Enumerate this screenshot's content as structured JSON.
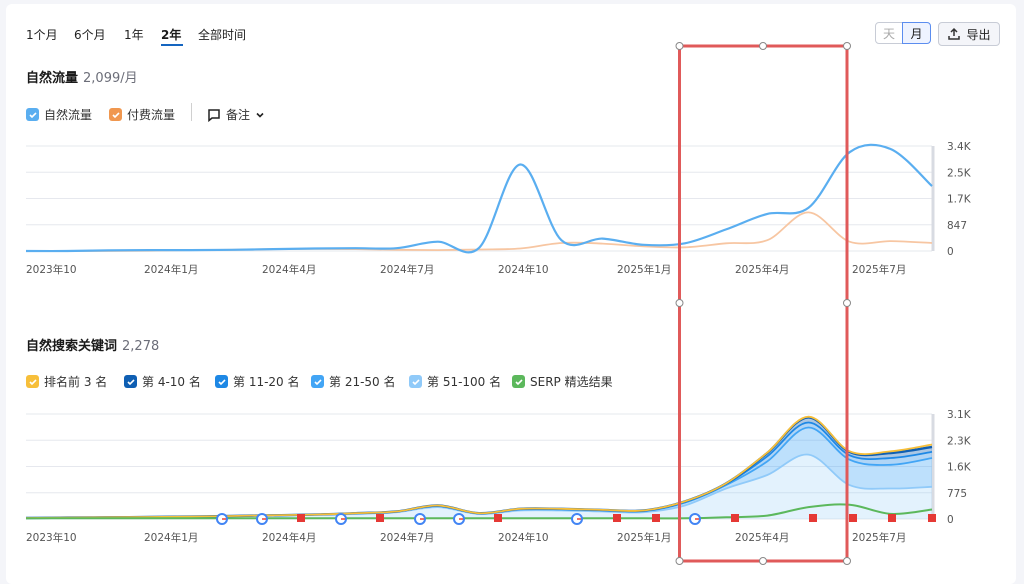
{
  "periods": [
    "1个月",
    "6个月",
    "1年",
    "2年",
    "全部时间"
  ],
  "active_period": "2年",
  "granularity": {
    "day": "天",
    "month": "月"
  },
  "export_label": "导出",
  "organic_traffic": {
    "title": "自然流量",
    "value": "2,099/月"
  },
  "traffic_legend": {
    "organic": "自然流量",
    "paid": "付费流量",
    "notes": "备注"
  },
  "keywords": {
    "title": "自然搜索关键词",
    "value": "2,278"
  },
  "kw_legend": [
    "排名前 3 名",
    "第 4-10 名",
    "第 11-20 名",
    "第 21-50 名",
    "第 51-100 名",
    "SERP 精选结果"
  ],
  "colors": {
    "organic": "#5aaef0",
    "paid": "#f7c6a2",
    "top3": "#f7bf3a",
    "pos4_10": "#0f5fb3",
    "pos11_20": "#1e88e5",
    "pos21_50": "#42a5f5",
    "pos51_100": "#90caf9",
    "serp": "#5cb85c",
    "highlight": "#e05a5a"
  },
  "chart_data": [
    {
      "type": "line",
      "title": "自然流量",
      "x": [
        "2023-10",
        "2023-11",
        "2023-12",
        "2024-01",
        "2024-02",
        "2024-03",
        "2024-04",
        "2024-05",
        "2024-06",
        "2024-07",
        "2024-08",
        "2024-09",
        "2024-10",
        "2024-11",
        "2024-12",
        "2025-01",
        "2025-02",
        "2025-03",
        "2025-04",
        "2025-05",
        "2025-06",
        "2025-07",
        "2025-08"
      ],
      "x_tick_labels": [
        "2023年10",
        "2024年1月",
        "2024年4月",
        "2024年7月",
        "2024年10",
        "2025年1月",
        "2025年4月",
        "2025年7月"
      ],
      "y_ticks": [
        "3.4K",
        "2.5K",
        "1.7K",
        "847",
        "0"
      ],
      "ylim": [
        0,
        3400
      ],
      "series": [
        {
          "name": "自然流量",
          "values": [
            0,
            0,
            20,
            30,
            30,
            40,
            60,
            80,
            90,
            90,
            300,
            100,
            2800,
            350,
            400,
            200,
            250,
            700,
            1200,
            1400,
            3200,
            3300,
            2100
          ]
        },
        {
          "name": "付费流量",
          "values": [
            0,
            0,
            0,
            10,
            30,
            40,
            60,
            70,
            60,
            40,
            30,
            50,
            80,
            260,
            240,
            150,
            120,
            250,
            350,
            1250,
            300,
            320,
            260
          ]
        }
      ]
    },
    {
      "type": "area",
      "title": "自然搜索关键词",
      "x": [
        "2023-10",
        "2023-11",
        "2023-12",
        "2024-01",
        "2024-02",
        "2024-03",
        "2024-04",
        "2024-05",
        "2024-06",
        "2024-07",
        "2024-08",
        "2024-09",
        "2024-10",
        "2024-11",
        "2024-12",
        "2025-01",
        "2025-02",
        "2025-03",
        "2025-04",
        "2025-05",
        "2025-06",
        "2025-07",
        "2025-08"
      ],
      "x_tick_labels": [
        "2023年10",
        "2024年1月",
        "2024年4月",
        "2024年7月",
        "2024年10",
        "2025年1月",
        "2025年4月",
        "2025年7月"
      ],
      "y_ticks": [
        "3.1K",
        "2.3K",
        "1.6K",
        "775",
        "0"
      ],
      "ylim": [
        0,
        3100
      ],
      "series": [
        {
          "name": "SERP 精选结果",
          "values": [
            20,
            20,
            20,
            20,
            20,
            20,
            20,
            20,
            20,
            20,
            20,
            20,
            20,
            20,
            20,
            20,
            20,
            50,
            100,
            350,
            420,
            150,
            280
          ]
        },
        {
          "name": "第 51-100 名",
          "values": [
            20,
            30,
            40,
            50,
            60,
            80,
            100,
            120,
            150,
            200,
            350,
            150,
            250,
            250,
            220,
            200,
            400,
            900,
            1300,
            1900,
            1000,
            900,
            950
          ]
        },
        {
          "name": "第 21-50 名",
          "values": [
            30,
            40,
            50,
            60,
            70,
            90,
            110,
            130,
            170,
            220,
            380,
            160,
            280,
            280,
            250,
            230,
            480,
            1000,
            1700,
            2700,
            1750,
            1600,
            1800
          ]
        },
        {
          "name": "第 11-20 名",
          "values": [
            30,
            40,
            50,
            60,
            70,
            90,
            110,
            130,
            170,
            220,
            390,
            165,
            290,
            290,
            260,
            240,
            500,
            1030,
            1850,
            2850,
            1880,
            1800,
            1980
          ]
        },
        {
          "name": "第 4-10 名",
          "values": [
            30,
            40,
            50,
            60,
            70,
            90,
            110,
            130,
            170,
            220,
            400,
            170,
            300,
            300,
            270,
            250,
            520,
            1050,
            1950,
            3000,
            1980,
            1950,
            2130
          ]
        },
        {
          "name": "排名前 3 名",
          "values": [
            30,
            40,
            50,
            60,
            70,
            90,
            110,
            130,
            170,
            220,
            400,
            170,
            300,
            300,
            270,
            250,
            520,
            1050,
            1960,
            3020,
            2000,
            2000,
            2200
          ]
        }
      ],
      "annotations": "Google update markers and red flag notes along the x-axis"
    }
  ]
}
